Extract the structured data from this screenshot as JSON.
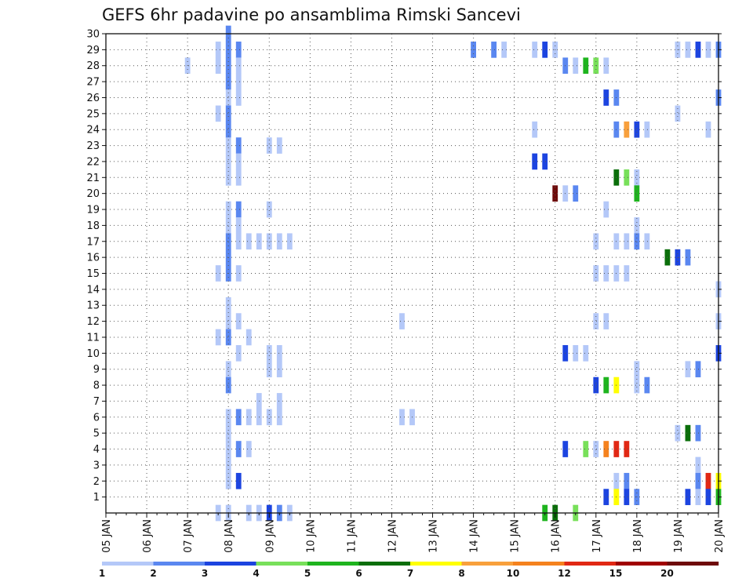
{
  "chart_data": {
    "type": "heatmap",
    "title": "GEFS 6hr padavine po ansamblima Rimski Sancevi",
    "x_tick_labels": [
      "05 JAN",
      "06 JAN",
      "07 JAN",
      "08 JAN",
      "09 JAN",
      "10 JAN",
      "11 JAN",
      "12 JAN",
      "13 JAN",
      "14 JAN",
      "15 JAN",
      "16 JAN",
      "17 JAN",
      "18 JAN",
      "19 JAN",
      "20 JAN"
    ],
    "y_tick_labels": [
      "1",
      "2",
      "3",
      "4",
      "5",
      "6",
      "7",
      "8",
      "9",
      "10",
      "11",
      "12",
      "13",
      "14",
      "15",
      "16",
      "17",
      "18",
      "19",
      "20",
      "21",
      "22",
      "23",
      "24",
      "25",
      "26",
      "27",
      "28",
      "29",
      "30"
    ],
    "xlim": [
      0,
      60
    ],
    "ylim": [
      0,
      30
    ],
    "grid": true,
    "colorbar": {
      "labels": [
        "1",
        "2",
        "3",
        "4",
        "5",
        "6",
        "7",
        "8",
        "10",
        "12",
        "15",
        "20"
      ],
      "colors": [
        "#b4c8f8",
        "#5a87f0",
        "#1c44e0",
        "#78e05a",
        "#1eb41e",
        "#0a6e0a",
        "#ffff00",
        "#f8a03c",
        "#f5821e",
        "#e12814",
        "#a00000",
        "#6e0a0a"
      ]
    },
    "cells": [
      [
        12,
        30,
        1
      ],
      [
        12,
        29,
        1
      ],
      [
        12,
        28,
        1
      ],
      [
        12,
        27,
        1
      ],
      [
        12,
        26,
        0
      ],
      [
        12,
        25,
        1
      ],
      [
        12,
        24,
        1
      ],
      [
        12,
        23,
        0
      ],
      [
        12,
        22,
        0
      ],
      [
        12,
        21,
        0
      ],
      [
        12,
        19,
        0
      ],
      [
        12,
        18,
        0
      ],
      [
        12,
        17,
        1
      ],
      [
        12,
        16,
        1
      ],
      [
        12,
        15,
        1
      ],
      [
        12,
        13,
        0
      ],
      [
        12,
        12,
        0
      ],
      [
        12,
        11,
        1
      ],
      [
        12,
        9,
        0
      ],
      [
        12,
        8,
        1
      ],
      [
        12,
        6,
        0
      ],
      [
        12,
        5,
        0
      ],
      [
        12,
        4,
        0
      ],
      [
        12,
        3,
        0
      ],
      [
        12,
        2,
        0
      ],
      [
        12,
        0,
        0
      ],
      [
        11,
        29,
        0
      ],
      [
        11,
        28,
        0
      ],
      [
        11,
        25,
        0
      ],
      [
        11,
        15,
        0
      ],
      [
        11,
        11,
        0
      ],
      [
        11,
        0,
        0
      ],
      [
        13,
        29,
        1
      ],
      [
        13,
        28,
        0
      ],
      [
        13,
        27,
        0
      ],
      [
        13,
        26,
        0
      ],
      [
        13,
        23,
        1
      ],
      [
        13,
        22,
        0
      ],
      [
        13,
        21,
        0
      ],
      [
        13,
        19,
        1
      ],
      [
        13,
        18,
        0
      ],
      [
        13,
        17,
        0
      ],
      [
        13,
        15,
        0
      ],
      [
        13,
        12,
        0
      ],
      [
        13,
        10,
        0
      ],
      [
        13,
        6,
        1
      ],
      [
        13,
        4,
        1
      ],
      [
        13,
        2,
        2
      ],
      [
        14,
        17,
        0
      ],
      [
        14,
        11,
        0
      ],
      [
        14,
        6,
        0
      ],
      [
        14,
        4,
        0
      ],
      [
        14,
        0,
        0
      ],
      [
        15,
        17,
        0
      ],
      [
        15,
        7,
        0
      ],
      [
        15,
        6,
        0
      ],
      [
        15,
        0,
        0
      ],
      [
        16,
        23,
        0
      ],
      [
        16,
        19,
        0
      ],
      [
        16,
        17,
        0
      ],
      [
        16,
        10,
        0
      ],
      [
        16,
        9,
        0
      ],
      [
        16,
        6,
        0
      ],
      [
        16,
        0,
        2
      ],
      [
        17,
        23,
        0
      ],
      [
        17,
        17,
        0
      ],
      [
        17,
        10,
        0
      ],
      [
        17,
        9,
        0
      ],
      [
        17,
        7,
        0
      ],
      [
        17,
        6,
        0
      ],
      [
        17,
        0,
        1
      ],
      [
        18,
        17,
        0
      ],
      [
        18,
        0,
        0
      ],
      [
        8,
        28,
        0
      ],
      [
        29,
        12,
        0
      ],
      [
        29,
        6,
        0
      ],
      [
        30,
        6,
        0
      ],
      [
        36,
        29,
        1
      ],
      [
        38,
        29,
        1
      ],
      [
        39,
        29,
        0
      ],
      [
        42,
        29,
        0
      ],
      [
        42,
        24,
        0
      ],
      [
        42,
        22,
        2
      ],
      [
        43,
        29,
        2
      ],
      [
        43,
        22,
        2
      ],
      [
        43,
        0,
        4
      ],
      [
        44,
        29,
        0
      ],
      [
        44,
        20,
        11
      ],
      [
        44,
        0,
        5
      ],
      [
        45,
        28,
        1
      ],
      [
        45,
        20,
        0
      ],
      [
        45,
        10,
        2
      ],
      [
        45,
        4,
        2
      ],
      [
        46,
        28,
        0
      ],
      [
        46,
        20,
        1
      ],
      [
        46,
        10,
        0
      ],
      [
        46,
        0,
        3
      ],
      [
        47,
        28,
        4
      ],
      [
        47,
        10,
        0
      ],
      [
        47,
        4,
        3
      ],
      [
        48,
        28,
        3
      ],
      [
        48,
        17,
        0
      ],
      [
        48,
        15,
        0
      ],
      [
        48,
        12,
        0
      ],
      [
        48,
        8,
        2
      ],
      [
        48,
        4,
        0
      ],
      [
        49,
        28,
        0
      ],
      [
        49,
        26,
        2
      ],
      [
        49,
        19,
        0
      ],
      [
        49,
        15,
        0
      ],
      [
        49,
        12,
        0
      ],
      [
        49,
        8,
        4
      ],
      [
        49,
        4,
        8
      ],
      [
        49,
        1,
        2
      ],
      [
        50,
        26,
        1
      ],
      [
        50,
        24,
        1
      ],
      [
        50,
        21,
        5
      ],
      [
        50,
        17,
        0
      ],
      [
        50,
        15,
        0
      ],
      [
        50,
        8,
        6
      ],
      [
        50,
        4,
        9
      ],
      [
        50,
        2,
        0
      ],
      [
        50,
        1,
        6
      ],
      [
        51,
        24,
        7
      ],
      [
        51,
        21,
        3
      ],
      [
        51,
        17,
        0
      ],
      [
        51,
        15,
        0
      ],
      [
        51,
        4,
        9
      ],
      [
        51,
        2,
        1
      ],
      [
        51,
        1,
        2
      ],
      [
        52,
        24,
        2
      ],
      [
        52,
        21,
        0
      ],
      [
        52,
        20,
        4
      ],
      [
        52,
        18,
        0
      ],
      [
        52,
        17,
        1
      ],
      [
        52,
        9,
        0
      ],
      [
        52,
        8,
        0
      ],
      [
        52,
        1,
        1
      ],
      [
        53,
        24,
        0
      ],
      [
        53,
        17,
        0
      ],
      [
        53,
        8,
        1
      ],
      [
        55,
        16,
        5
      ],
      [
        56,
        29,
        0
      ],
      [
        56,
        25,
        0
      ],
      [
        56,
        16,
        2
      ],
      [
        56,
        5,
        0
      ],
      [
        57,
        29,
        0
      ],
      [
        57,
        16,
        1
      ],
      [
        57,
        9,
        0
      ],
      [
        57,
        5,
        5
      ],
      [
        57,
        1,
        2
      ],
      [
        58,
        29,
        2
      ],
      [
        58,
        9,
        1
      ],
      [
        58,
        5,
        1
      ],
      [
        58,
        3,
        0
      ],
      [
        58,
        2,
        1
      ],
      [
        58,
        1,
        0
      ],
      [
        59,
        29,
        0
      ],
      [
        59,
        24,
        0
      ],
      [
        59,
        2,
        9
      ],
      [
        59,
        1,
        2
      ],
      [
        60,
        29,
        1
      ],
      [
        60,
        26,
        1
      ],
      [
        60,
        14,
        0
      ],
      [
        60,
        12,
        0
      ],
      [
        60,
        10,
        2
      ],
      [
        60,
        2,
        6
      ],
      [
        60,
        1,
        4
      ]
    ]
  }
}
